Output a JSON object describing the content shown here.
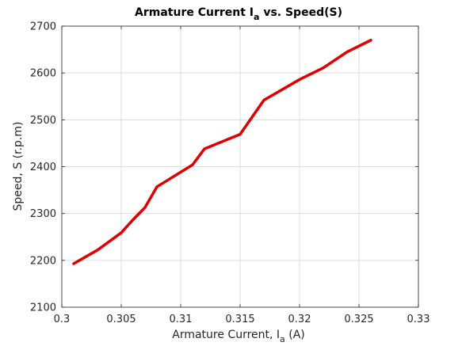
{
  "chart_data": {
    "type": "line",
    "title": {
      "main": "Armature Current I",
      "sub": "a",
      "suffix": " vs. Speed(S)"
    },
    "xlabel": {
      "main": "Armature Current, I",
      "sub": "a",
      "suffix": " (A)"
    },
    "ylabel": "Speed, S (r.p.m)",
    "xlim": [
      0.3,
      0.33
    ],
    "ylim": [
      2100,
      2700
    ],
    "xticks": [
      0.3,
      0.305,
      0.31,
      0.315,
      0.32,
      0.325,
      0.33
    ],
    "xtick_labels": [
      "0.3",
      "0.305",
      "0.31",
      "0.315",
      "0.32",
      "0.325",
      "0.33"
    ],
    "yticks": [
      2100,
      2200,
      2300,
      2400,
      2500,
      2600,
      2700
    ],
    "ytick_labels": [
      "2100",
      "2200",
      "2300",
      "2400",
      "2500",
      "2600",
      "2700"
    ],
    "grid": true,
    "series": [
      {
        "color": "#e00000",
        "x": [
          0.301,
          0.303,
          0.305,
          0.306,
          0.307,
          0.308,
          0.311,
          0.312,
          0.315,
          0.317,
          0.32,
          0.322,
          0.324,
          0.326
        ],
        "y": [
          2193,
          2222,
          2259,
          2287,
          2313,
          2357,
          2404,
          2438,
          2469,
          2542,
          2586,
          2611,
          2645,
          2670
        ]
      }
    ]
  }
}
